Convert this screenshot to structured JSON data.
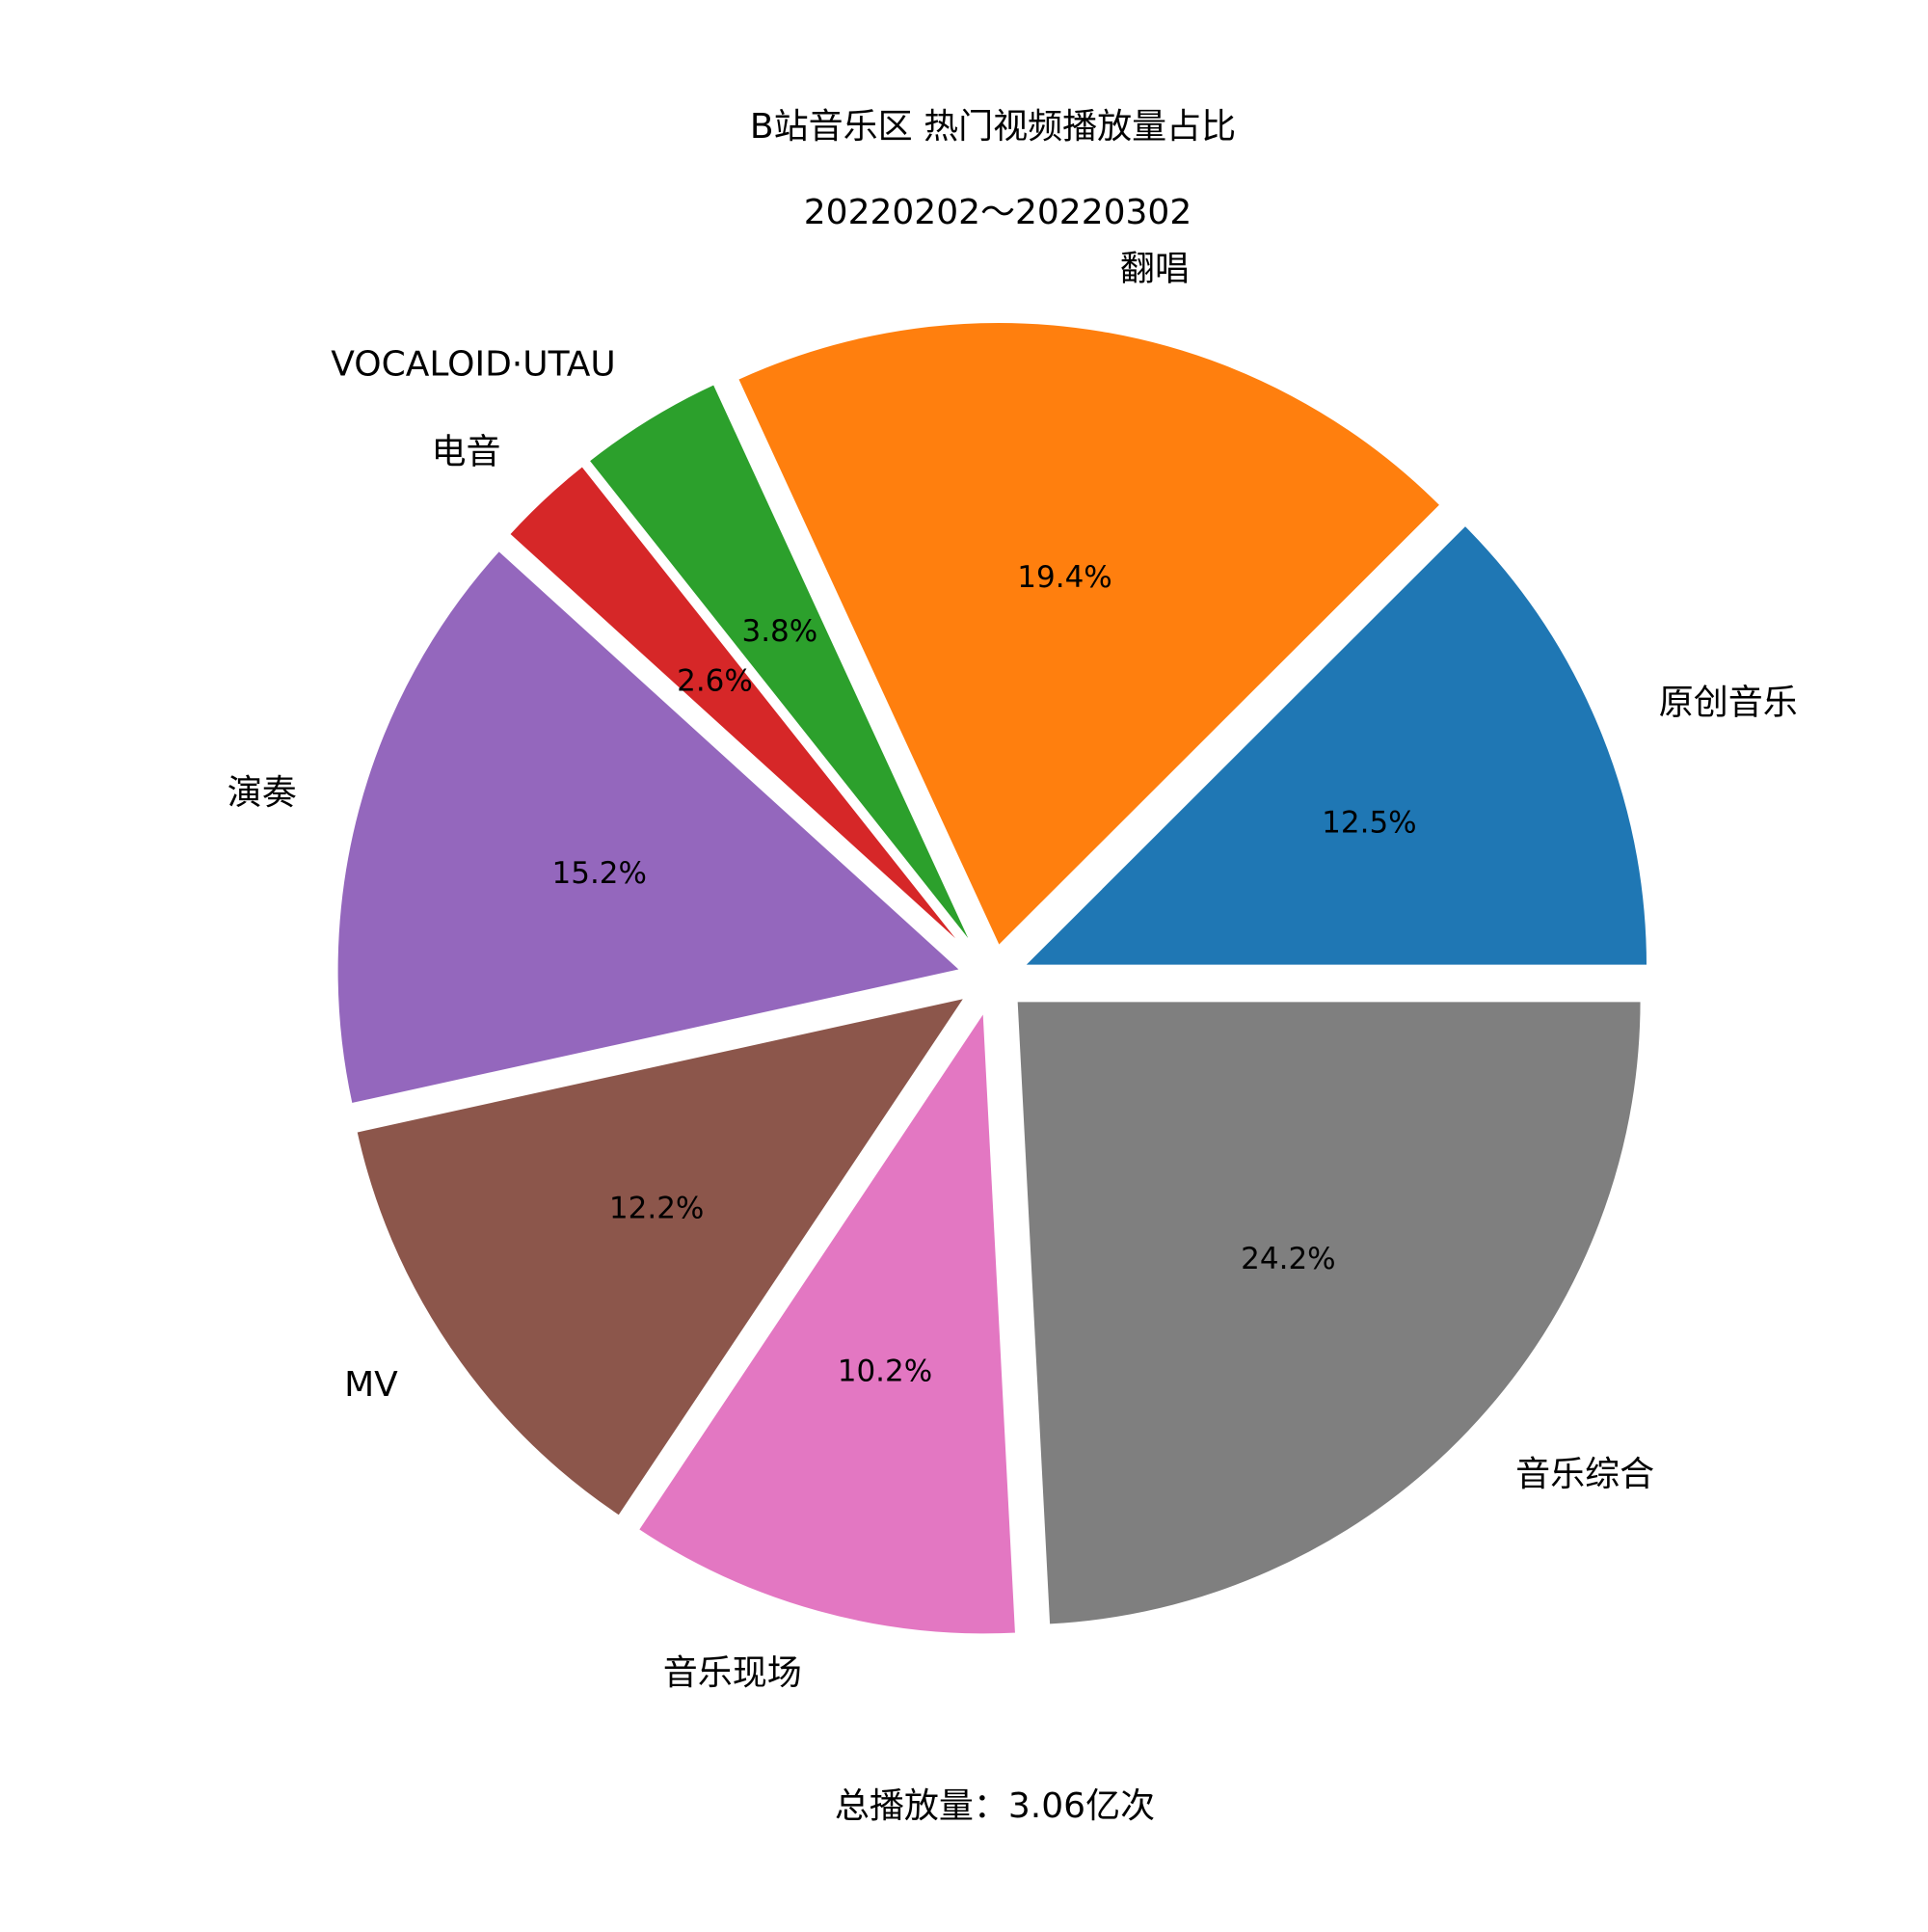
{
  "chart_data": {
    "type": "pie",
    "title": "B站音乐区 热门视频播放量占比",
    "subtitle": "20220202～20220302",
    "footer": "总播放量：3.06亿次",
    "start_angle_deg": 0,
    "direction": "counterclockwise",
    "explode": true,
    "slices": [
      {
        "label": "原创音乐",
        "value": 12.5,
        "pct_text": "12.5%",
        "color": "#1f77b4"
      },
      {
        "label": "翻唱",
        "value": 19.4,
        "pct_text": "19.4%",
        "color": "#ff7f0e"
      },
      {
        "label": "VOCALOID·UTAU",
        "value": 3.8,
        "pct_text": "3.8%",
        "color": "#2ca02c"
      },
      {
        "label": "电音",
        "value": 2.6,
        "pct_text": "2.6%",
        "color": "#d62728"
      },
      {
        "label": "演奏",
        "value": 15.2,
        "pct_text": "15.2%",
        "color": "#9467bd"
      },
      {
        "label": "MV",
        "value": 12.2,
        "pct_text": "12.2%",
        "color": "#8c564b"
      },
      {
        "label": "音乐现场",
        "value": 10.2,
        "pct_text": "10.2%",
        "color": "#e377c2"
      },
      {
        "label": "音乐综合",
        "value": 24.2,
        "pct_text": "24.2%",
        "color": "#7f7f7f"
      }
    ]
  }
}
